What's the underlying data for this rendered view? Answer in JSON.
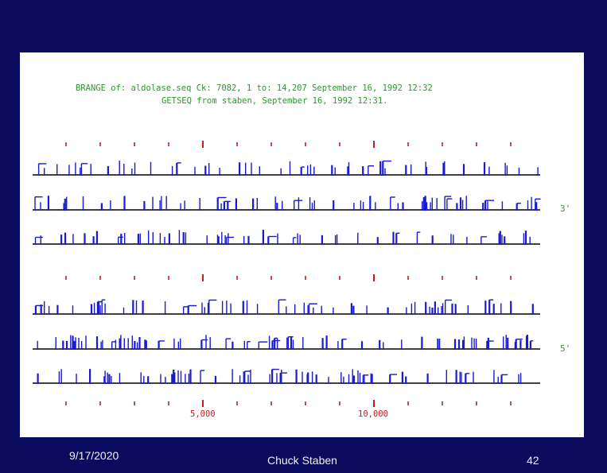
{
  "slide": {
    "header_line1": "BRANGE of: aldolase.seq  Ck: 7082,   1 to: 14,207  September 16, 1992 12:32",
    "header_line2": "GETSEQ from staben, September 16, 1992 12:31.",
    "label_3prime": "3'",
    "label_5prime": "5'",
    "ruler_label_5000": "5,000",
    "ruler_label_10000": "10,000"
  },
  "footer": {
    "date": "9/17/2020",
    "author": "Chuck Staben",
    "page": "42"
  },
  "colors": {
    "background": "#0b0b5e",
    "panel": "#ffffff",
    "header_text": "#2b9a2b",
    "track_line": "#000000",
    "frames": "#1a1ad0",
    "ruler": "#cc1a1a",
    "footer_text": "#f0f0f0"
  }
}
